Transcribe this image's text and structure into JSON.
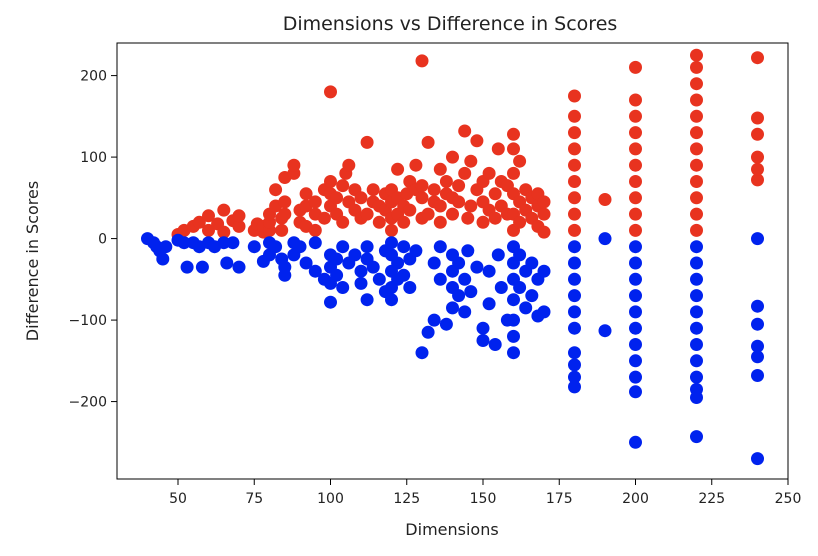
{
  "chart_data": {
    "type": "scatter",
    "title": "Dimensions vs Difference in Scores",
    "xlabel": "Dimensions",
    "ylabel": "Difference in Scores",
    "xlim": [
      30,
      250
    ],
    "ylim": [
      -295,
      240
    ],
    "xticks": [
      50,
      75,
      100,
      125,
      150,
      175,
      200,
      225,
      250
    ],
    "yticks": [
      -200,
      -100,
      0,
      100,
      200
    ],
    "grid": false,
    "legend": "none",
    "series": [
      {
        "color": "#e8331f",
        "points": [
          [
            50,
            5
          ],
          [
            52,
            10
          ],
          [
            55,
            15
          ],
          [
            57,
            20
          ],
          [
            60,
            10
          ],
          [
            60,
            28
          ],
          [
            63,
            18
          ],
          [
            65,
            8
          ],
          [
            65,
            35
          ],
          [
            68,
            22
          ],
          [
            70,
            15
          ],
          [
            70,
            28
          ],
          [
            75,
            10
          ],
          [
            76,
            18
          ],
          [
            78,
            8
          ],
          [
            78,
            15
          ],
          [
            80,
            10
          ],
          [
            80,
            20
          ],
          [
            80,
            30
          ],
          [
            82,
            40
          ],
          [
            82,
            60
          ],
          [
            84,
            10
          ],
          [
            84,
            25
          ],
          [
            85,
            30
          ],
          [
            85,
            75
          ],
          [
            85,
            45
          ],
          [
            88,
            80
          ],
          [
            88,
            90
          ],
          [
            90,
            20
          ],
          [
            90,
            35
          ],
          [
            92,
            40
          ],
          [
            92,
            55
          ],
          [
            92,
            15
          ],
          [
            95,
            10
          ],
          [
            95,
            30
          ],
          [
            95,
            45
          ],
          [
            98,
            25
          ],
          [
            98,
            60
          ],
          [
            100,
            40
          ],
          [
            100,
            55
          ],
          [
            100,
            70
          ],
          [
            100,
            180
          ],
          [
            102,
            30
          ],
          [
            102,
            50
          ],
          [
            104,
            20
          ],
          [
            104,
            65
          ],
          [
            105,
            80
          ],
          [
            106,
            45
          ],
          [
            106,
            90
          ],
          [
            108,
            35
          ],
          [
            108,
            60
          ],
          [
            110,
            25
          ],
          [
            110,
            50
          ],
          [
            112,
            30
          ],
          [
            112,
            118
          ],
          [
            114,
            45
          ],
          [
            114,
            60
          ],
          [
            116,
            20
          ],
          [
            116,
            40
          ],
          [
            118,
            55
          ],
          [
            118,
            35
          ],
          [
            120,
            10
          ],
          [
            120,
            25
          ],
          [
            120,
            45
          ],
          [
            120,
            60
          ],
          [
            122,
            30
          ],
          [
            122,
            50
          ],
          [
            122,
            85
          ],
          [
            124,
            20
          ],
          [
            124,
            40
          ],
          [
            125,
            55
          ],
          [
            126,
            35
          ],
          [
            126,
            70
          ],
          [
            128,
            60
          ],
          [
            128,
            90
          ],
          [
            130,
            25
          ],
          [
            130,
            50
          ],
          [
            130,
            65
          ],
          [
            130,
            218
          ],
          [
            132,
            30
          ],
          [
            132,
            118
          ],
          [
            134,
            45
          ],
          [
            134,
            60
          ],
          [
            136,
            20
          ],
          [
            136,
            40
          ],
          [
            136,
            85
          ],
          [
            138,
            55
          ],
          [
            138,
            70
          ],
          [
            140,
            30
          ],
          [
            140,
            50
          ],
          [
            140,
            100
          ],
          [
            142,
            45
          ],
          [
            142,
            65
          ],
          [
            144,
            80
          ],
          [
            144,
            132
          ],
          [
            145,
            25
          ],
          [
            146,
            40
          ],
          [
            146,
            95
          ],
          [
            148,
            60
          ],
          [
            148,
            120
          ],
          [
            150,
            20
          ],
          [
            150,
            45
          ],
          [
            150,
            70
          ],
          [
            152,
            35
          ],
          [
            152,
            80
          ],
          [
            154,
            25
          ],
          [
            154,
            55
          ],
          [
            155,
            110
          ],
          [
            156,
            40
          ],
          [
            156,
            70
          ],
          [
            158,
            30
          ],
          [
            158,
            65
          ],
          [
            160,
            10
          ],
          [
            160,
            30
          ],
          [
            160,
            55
          ],
          [
            160,
            80
          ],
          [
            160,
            110
          ],
          [
            160,
            128
          ],
          [
            162,
            20
          ],
          [
            162,
            45
          ],
          [
            162,
            95
          ],
          [
            164,
            35
          ],
          [
            164,
            60
          ],
          [
            166,
            25
          ],
          [
            166,
            50
          ],
          [
            168,
            15
          ],
          [
            168,
            40
          ],
          [
            168,
            55
          ],
          [
            170,
            8
          ],
          [
            170,
            30
          ],
          [
            170,
            45
          ],
          [
            180,
            10
          ],
          [
            180,
            30
          ],
          [
            180,
            50
          ],
          [
            180,
            70
          ],
          [
            180,
            90
          ],
          [
            180,
            110
          ],
          [
            180,
            130
          ],
          [
            180,
            150
          ],
          [
            180,
            175
          ],
          [
            190,
            48
          ],
          [
            200,
            10
          ],
          [
            200,
            30
          ],
          [
            200,
            50
          ],
          [
            200,
            70
          ],
          [
            200,
            90
          ],
          [
            200,
            110
          ],
          [
            200,
            130
          ],
          [
            200,
            150
          ],
          [
            200,
            170
          ],
          [
            200,
            210
          ],
          [
            220,
            10
          ],
          [
            220,
            30
          ],
          [
            220,
            50
          ],
          [
            220,
            70
          ],
          [
            220,
            90
          ],
          [
            220,
            110
          ],
          [
            220,
            130
          ],
          [
            220,
            150
          ],
          [
            220,
            170
          ],
          [
            220,
            190
          ],
          [
            220,
            210
          ],
          [
            220,
            225
          ],
          [
            240,
            72
          ],
          [
            240,
            85
          ],
          [
            240,
            100
          ],
          [
            240,
            128
          ],
          [
            240,
            148
          ],
          [
            240,
            222
          ]
        ]
      },
      {
        "color": "#0022ee",
        "points": [
          [
            40,
            0
          ],
          [
            42,
            -5
          ],
          [
            43,
            -10
          ],
          [
            44,
            -15
          ],
          [
            45,
            -25
          ],
          [
            46,
            -10
          ],
          [
            50,
            -2
          ],
          [
            52,
            -5
          ],
          [
            53,
            -35
          ],
          [
            55,
            -5
          ],
          [
            57,
            -10
          ],
          [
            58,
            -35
          ],
          [
            60,
            -5
          ],
          [
            62,
            -10
          ],
          [
            65,
            -5
          ],
          [
            66,
            -30
          ],
          [
            68,
            -5
          ],
          [
            70,
            -35
          ],
          [
            75,
            -10
          ],
          [
            78,
            -28
          ],
          [
            80,
            -5
          ],
          [
            80,
            -20
          ],
          [
            82,
            -10
          ],
          [
            84,
            -25
          ],
          [
            85,
            -35
          ],
          [
            85,
            -45
          ],
          [
            88,
            -5
          ],
          [
            88,
            -20
          ],
          [
            90,
            -10
          ],
          [
            92,
            -30
          ],
          [
            95,
            -5
          ],
          [
            95,
            -40
          ],
          [
            98,
            -50
          ],
          [
            100,
            -20
          ],
          [
            100,
            -35
          ],
          [
            100,
            -55
          ],
          [
            100,
            -78
          ],
          [
            102,
            -25
          ],
          [
            102,
            -45
          ],
          [
            104,
            -10
          ],
          [
            104,
            -60
          ],
          [
            106,
            -30
          ],
          [
            108,
            -20
          ],
          [
            110,
            -40
          ],
          [
            110,
            -55
          ],
          [
            112,
            -10
          ],
          [
            112,
            -25
          ],
          [
            112,
            -75
          ],
          [
            114,
            -35
          ],
          [
            116,
            -50
          ],
          [
            118,
            -15
          ],
          [
            118,
            -65
          ],
          [
            120,
            -5
          ],
          [
            120,
            -20
          ],
          [
            120,
            -40
          ],
          [
            120,
            -60
          ],
          [
            120,
            -75
          ],
          [
            122,
            -30
          ],
          [
            122,
            -50
          ],
          [
            124,
            -10
          ],
          [
            124,
            -45
          ],
          [
            126,
            -25
          ],
          [
            126,
            -60
          ],
          [
            128,
            -15
          ],
          [
            130,
            -140
          ],
          [
            132,
            -115
          ],
          [
            134,
            -30
          ],
          [
            134,
            -100
          ],
          [
            136,
            -10
          ],
          [
            136,
            -50
          ],
          [
            138,
            -105
          ],
          [
            140,
            -20
          ],
          [
            140,
            -40
          ],
          [
            140,
            -60
          ],
          [
            140,
            -85
          ],
          [
            142,
            -30
          ],
          [
            142,
            -70
          ],
          [
            144,
            -50
          ],
          [
            144,
            -90
          ],
          [
            145,
            -15
          ],
          [
            146,
            -65
          ],
          [
            148,
            -35
          ],
          [
            150,
            -110
          ],
          [
            150,
            -125
          ],
          [
            152,
            -40
          ],
          [
            152,
            -80
          ],
          [
            154,
            -130
          ],
          [
            155,
            -20
          ],
          [
            156,
            -60
          ],
          [
            158,
            -100
          ],
          [
            160,
            -10
          ],
          [
            160,
            -30
          ],
          [
            160,
            -50
          ],
          [
            160,
            -75
          ],
          [
            160,
            -100
          ],
          [
            160,
            -120
          ],
          [
            160,
            -140
          ],
          [
            162,
            -20
          ],
          [
            162,
            -60
          ],
          [
            164,
            -40
          ],
          [
            164,
            -85
          ],
          [
            166,
            -30
          ],
          [
            166,
            -70
          ],
          [
            168,
            -50
          ],
          [
            168,
            -95
          ],
          [
            170,
            -40
          ],
          [
            170,
            -90
          ],
          [
            180,
            -10
          ],
          [
            180,
            -30
          ],
          [
            180,
            -50
          ],
          [
            180,
            -70
          ],
          [
            180,
            -90
          ],
          [
            180,
            -110
          ],
          [
            180,
            -140
          ],
          [
            180,
            -155
          ],
          [
            180,
            -170
          ],
          [
            180,
            -182
          ],
          [
            190,
            -113
          ],
          [
            190,
            0
          ],
          [
            200,
            -10
          ],
          [
            200,
            -30
          ],
          [
            200,
            -50
          ],
          [
            200,
            -70
          ],
          [
            200,
            -90
          ],
          [
            200,
            -110
          ],
          [
            200,
            -130
          ],
          [
            200,
            -150
          ],
          [
            200,
            -170
          ],
          [
            200,
            -188
          ],
          [
            200,
            -250
          ],
          [
            220,
            -10
          ],
          [
            220,
            -30
          ],
          [
            220,
            -50
          ],
          [
            220,
            -70
          ],
          [
            220,
            -90
          ],
          [
            220,
            -110
          ],
          [
            220,
            -130
          ],
          [
            220,
            -150
          ],
          [
            220,
            -170
          ],
          [
            220,
            -185
          ],
          [
            220,
            -195
          ],
          [
            220,
            -243
          ],
          [
            240,
            -83
          ],
          [
            240,
            -105
          ],
          [
            240,
            -132
          ],
          [
            240,
            -145
          ],
          [
            240,
            -168
          ],
          [
            240,
            -270
          ],
          [
            240,
            0
          ]
        ]
      }
    ]
  }
}
